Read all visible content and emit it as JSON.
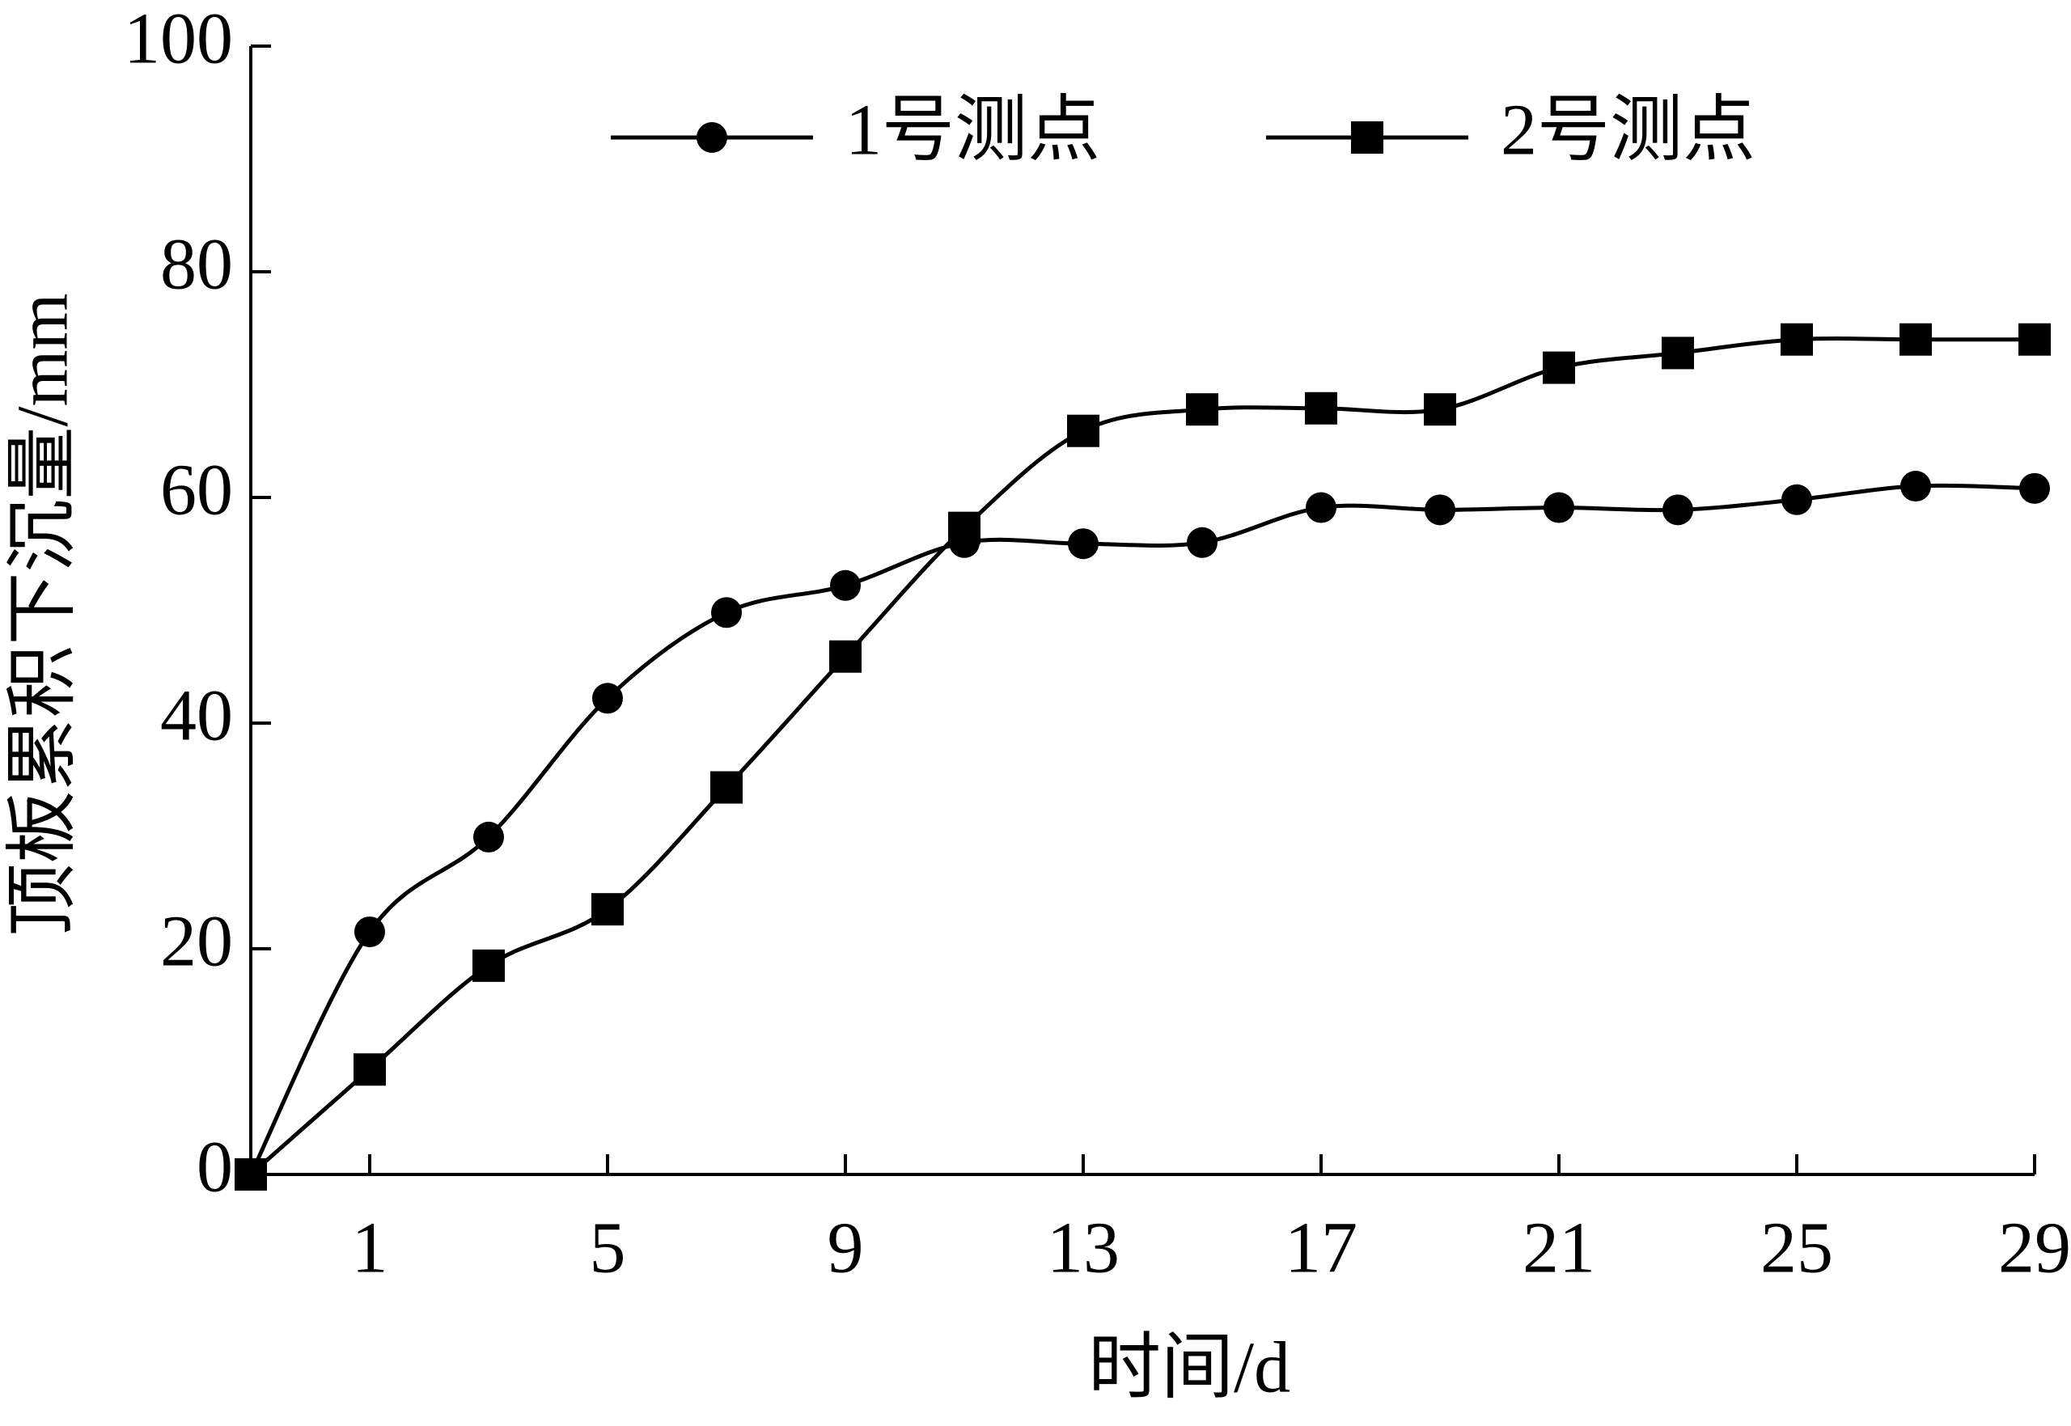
{
  "chart_data": {
    "type": "line",
    "x_label": "时间/d",
    "y_label": "顶板累积下沉量/mm",
    "categories": [
      null,
      "1",
      null,
      "5",
      null,
      "9",
      null,
      "13",
      null,
      "17",
      null,
      "21",
      null,
      "25",
      null,
      "29"
    ],
    "ylim": [
      0,
      100
    ],
    "yticks": [
      0,
      20,
      40,
      60,
      80,
      100
    ],
    "series": [
      {
        "name": "1号测点",
        "color": "#000000",
        "marker": "circle",
        "values": [
          0,
          21.5,
          29.9,
          42.2,
          49.8,
          52.2,
          56,
          55.9,
          56,
          59.1,
          58.9,
          59.1,
          58.9,
          59.8,
          61,
          60.8
        ]
      },
      {
        "name": "2号测点",
        "color": "#000000",
        "marker": "square",
        "values": [
          0,
          9.3,
          18.5,
          23.5,
          34.3,
          45.9,
          57.3,
          65.9,
          67.8,
          67.9,
          67.8,
          71.5,
          72.8,
          74,
          74,
          74
        ]
      }
    ]
  }
}
